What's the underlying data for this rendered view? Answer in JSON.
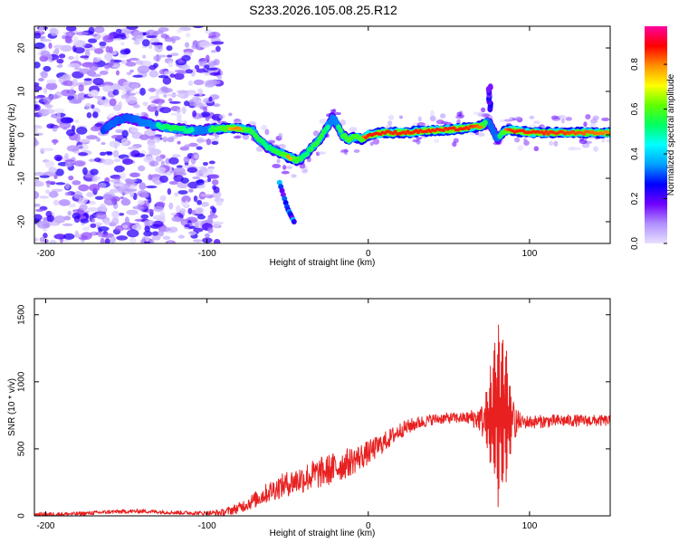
{
  "title": "S233.2026.105.08.25.R12",
  "chart_data": [
    {
      "type": "heatmap",
      "name": "spectrogram",
      "xlabel": "Height of straight line (km)",
      "ylabel": "Frequency (Hz)",
      "xlim": [
        -207,
        150
      ],
      "ylim": [
        -25,
        25
      ],
      "xticks": [
        -200,
        -100,
        0,
        100
      ],
      "yticks": [
        -20,
        -10,
        0,
        10,
        20
      ],
      "colorbar": {
        "label": "Normalized spectral amplitude",
        "range": [
          0,
          0.97
        ],
        "ticks": [
          0.0,
          0.2,
          0.4,
          0.6,
          0.8
        ],
        "colormap": [
          "#e8e0ff",
          "#b090ff",
          "#7000ff",
          "#0000ff",
          "#00a0ff",
          "#00ffff",
          "#00ff60",
          "#60ff00",
          "#ffff00",
          "#ff9000",
          "#ff0000",
          "#ff00a0"
        ]
      },
      "noise_region_km": [
        -207,
        -92
      ],
      "ridge": {
        "x": [
          -164,
          -160,
          -150,
          -140,
          -130,
          -120,
          -110,
          -100,
          -90,
          -80,
          -72,
          -68,
          -62,
          -55,
          -50,
          -44,
          -40,
          -35,
          -30,
          -25,
          -22,
          -19,
          -16,
          -12,
          -8,
          -4,
          0,
          10,
          20,
          40,
          60,
          70,
          75,
          80,
          85,
          90,
          100,
          120,
          150
        ],
        "freq_hz": [
          1,
          2.5,
          4,
          3,
          2,
          1.5,
          1,
          1.2,
          1.5,
          1.5,
          1,
          -1,
          -3,
          -4,
          -5,
          -6,
          -5,
          -3,
          -1,
          2,
          4,
          2,
          0,
          -1,
          -0.5,
          -1,
          0,
          0.5,
          0.5,
          1,
          1.5,
          2,
          3,
          -1,
          1,
          1,
          0.5,
          0.5,
          0.5
        ],
        "amplitude": [
          0.3,
          0.4,
          0.35,
          0.45,
          0.5,
          0.55,
          0.5,
          0.45,
          0.75,
          0.8,
          0.6,
          0.55,
          0.5,
          0.6,
          0.8,
          0.7,
          0.5,
          0.55,
          0.6,
          0.5,
          0.45,
          0.5,
          0.6,
          0.75,
          0.7,
          0.75,
          0.95,
          0.9,
          0.9,
          0.9,
          0.9,
          0.8,
          0.4,
          0.4,
          0.8,
          0.9,
          0.9,
          0.85,
          0.8
        ]
      },
      "spur": {
        "x": [
          -55,
          -50,
          -46
        ],
        "freq_hz": [
          -11,
          -17,
          -20
        ]
      },
      "burst": {
        "x": 75,
        "freq_hz": [
          6,
          11
        ]
      }
    },
    {
      "type": "line",
      "name": "snr",
      "xlabel": "Height of straight line (km)",
      "ylabel": "SNR (10 * v/v)",
      "xlim": [
        -207,
        150
      ],
      "ylim": [
        0,
        1620
      ],
      "xticks": [
        -200,
        -100,
        0,
        100
      ],
      "yticks": [
        0,
        500,
        1000,
        1500
      ],
      "color": "#e82020",
      "envelope": {
        "x": [
          -207,
          -180,
          -160,
          -140,
          -120,
          -100,
          -90,
          -80,
          -70,
          -60,
          -50,
          -40,
          -30,
          -20,
          -10,
          0,
          10,
          20,
          30,
          40,
          50,
          60,
          65,
          70,
          73,
          76,
          79,
          82,
          85,
          88,
          92,
          100,
          120,
          150
        ],
        "snr": [
          10,
          15,
          30,
          35,
          25,
          20,
          25,
          60,
          120,
          190,
          240,
          280,
          320,
          360,
          410,
          470,
          550,
          640,
          690,
          720,
          730,
          730,
          730,
          720,
          700,
          720,
          760,
          780,
          750,
          730,
          700,
          700,
          710,
          710
        ]
      },
      "noise_amplitude": {
        "x": [
          -207,
          -100,
          -80,
          -60,
          -40,
          -20,
          0,
          20,
          40,
          60,
          70,
          75,
          80,
          85,
          90,
          95,
          150
        ],
        "amp": [
          15,
          15,
          40,
          80,
          110,
          120,
          90,
          60,
          40,
          40,
          100,
          350,
          800,
          600,
          150,
          50,
          40
        ]
      }
    }
  ]
}
